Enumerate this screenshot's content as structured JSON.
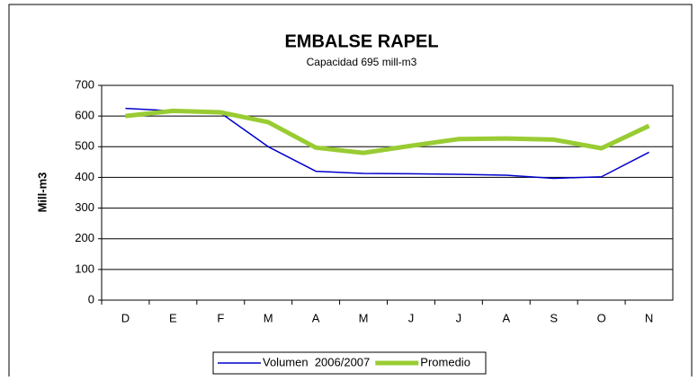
{
  "chart_data": {
    "type": "line",
    "title": "EMBALSE RAPEL",
    "subtitle": "Capacidad 695 mill-m3",
    "y_label": "Mill-m3",
    "categories": [
      "D",
      "E",
      "F",
      "M",
      "A",
      "M",
      "J",
      "J",
      "A",
      "S",
      "O",
      "N"
    ],
    "series": [
      {
        "name": "Volumen  2006/2007",
        "color": "#0000cc",
        "values": [
          625,
          617,
          610,
          500,
          420,
          413,
          412,
          410,
          407,
          397,
          402,
          482
        ]
      },
      {
        "name": "Promedio",
        "color": "#99cc33",
        "values": [
          600,
          617,
          612,
          580,
          497,
          480,
          503,
          525,
          527,
          523,
          495,
          568
        ]
      }
    ],
    "ylim": [
      0,
      700
    ],
    "yticks": [
      0,
      100,
      200,
      300,
      400,
      500,
      600,
      700
    ],
    "grid": true,
    "legend": "bottom"
  }
}
